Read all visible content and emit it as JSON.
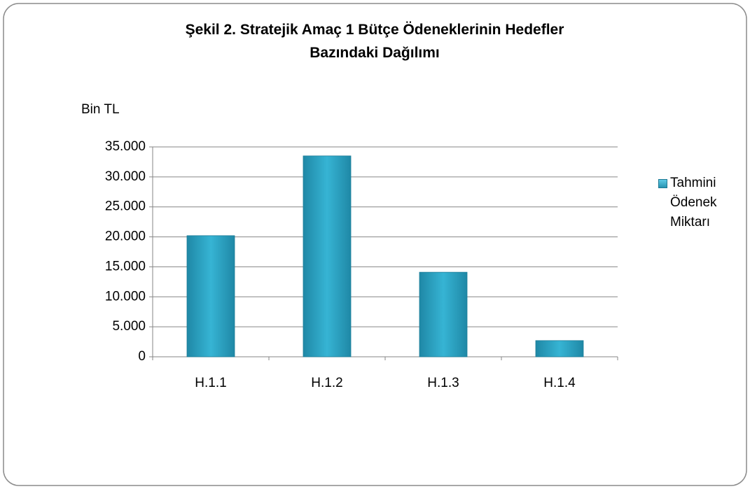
{
  "chart_data": {
    "type": "bar",
    "title": "Şekil 2. Stratejik Amaç 1 Bütçe Ödeneklerinin Hedefler Bazındaki Dağılımı",
    "y_label": "Bin TL",
    "categories": [
      "H.1.1",
      "H.1.2",
      "H.1.3",
      "H.1.4"
    ],
    "series": [
      {
        "name": "Tahmini Ödenek Miktarı",
        "color": "#2aa3c4",
        "values": [
          20200,
          33500,
          14100,
          2700
        ]
      }
    ],
    "ylim": [
      0,
      35000
    ],
    "yticks": [
      0,
      {
        "value": 5000,
        "label": "5.000"
      },
      {
        "value": 10000,
        "label": "10.000"
      },
      {
        "value": 15000,
        "label": "15.000"
      },
      {
        "value": 20000,
        "label": "20.000"
      },
      {
        "value": 25000,
        "label": "25.000"
      },
      {
        "value": 30000,
        "label": "30.000"
      },
      {
        "value": 35000,
        "label": "35.000"
      }
    ],
    "grid": true,
    "legend": "right"
  }
}
